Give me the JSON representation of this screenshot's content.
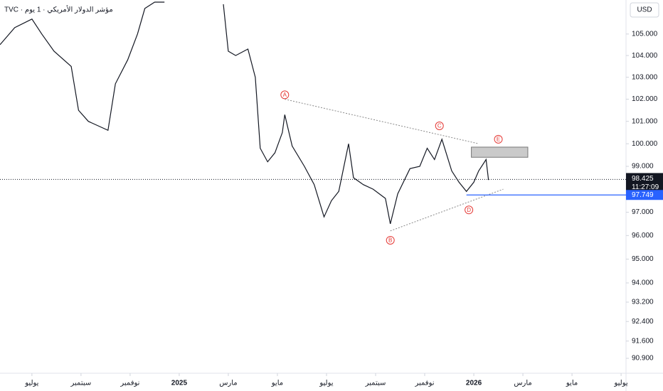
{
  "chart_data": {
    "type": "line",
    "title": "TVC · مؤشر الدولار الأمريكي · 1 يوم",
    "currency": "USD",
    "log_scale": true,
    "color": "#131722",
    "x": [
      -1.3,
      -0.7,
      0,
      0.4,
      0.9,
      1.6,
      1.9,
      2.3,
      2.7,
      3.1,
      3.4,
      3.9,
      4.3,
      4.6,
      5.0,
      5.4,
      5.6,
      7.8,
      8.0,
      8.3,
      8.8,
      9.1,
      9.3,
      9.6,
      9.9,
      10.2,
      10.3,
      10.6,
      11.1,
      11.5,
      11.9,
      12.2,
      12.5,
      12.9,
      13.1,
      13.5,
      13.9,
      14.4,
      14.6,
      14.9,
      15.4,
      15.8,
      16.1,
      16.4,
      16.7,
      17.1,
      17.4,
      17.7,
      18.0,
      18.2,
      18.5,
      18.6
    ],
    "values": [
      104.5,
      105.3,
      105.7,
      105.0,
      104.2,
      103.5,
      101.5,
      101.0,
      100.8,
      100.6,
      102.7,
      103.8,
      105.0,
      106.2,
      106.5,
      106.5,
      null,
      106.4,
      104.2,
      104.0,
      104.3,
      103.0,
      99.8,
      99.2,
      99.6,
      100.5,
      101.3,
      99.9,
      99.0,
      98.2,
      96.8,
      97.5,
      97.9,
      100.0,
      98.5,
      98.2,
      98.0,
      97.6,
      96.5,
      97.8,
      98.9,
      99.0,
      99.8,
      99.3,
      100.2,
      98.8,
      98.3,
      97.9,
      98.3,
      98.8,
      99.3,
      98.4
    ],
    "xlim": [
      -1.3,
      24.2
    ],
    "xticks": [
      {
        "value": 0,
        "label": "يوليو"
      },
      {
        "value": 2,
        "label": "سبتمبر"
      },
      {
        "value": 4,
        "label": "نوفمبر"
      },
      {
        "value": 6,
        "label": "2025"
      },
      {
        "value": 8,
        "label": "مارس"
      },
      {
        "value": 10,
        "label": "مايو"
      },
      {
        "value": 12,
        "label": "يوليو"
      },
      {
        "value": 14,
        "label": "سبتمبر"
      },
      {
        "value": 16,
        "label": "نوفمبر"
      },
      {
        "value": 18,
        "label": "2026"
      },
      {
        "value": 20,
        "label": "مارس"
      },
      {
        "value": 22,
        "label": "مايو"
      },
      {
        "value": 24,
        "label": "يوليو"
      }
    ],
    "ylim": [
      90.3,
      106.6
    ],
    "yticks": [
      {
        "value": 105,
        "label": "105.000"
      },
      {
        "value": 104,
        "label": "104.000"
      },
      {
        "value": 103,
        "label": "103.000"
      },
      {
        "value": 102,
        "label": "102.000"
      },
      {
        "value": 101,
        "label": "101.000"
      },
      {
        "value": 100,
        "label": "100.000"
      },
      {
        "value": 99,
        "label": "99.000"
      },
      {
        "value": 97,
        "label": "97.000"
      },
      {
        "value": 96,
        "label": "96.000"
      },
      {
        "value": 95,
        "label": "95.000"
      },
      {
        "value": 94,
        "label": "94.000"
      },
      {
        "value": 93.2,
        "label": "93.200"
      },
      {
        "value": 92.4,
        "label": "92.400"
      },
      {
        "value": 91.6,
        "label": "91.600"
      },
      {
        "value": 90.9,
        "label": "90.900"
      }
    ],
    "last_price": 98.425,
    "countdown": "11:27:09",
    "level": {
      "value": 97.749,
      "color": "#2962ff",
      "x_start": 17.7
    },
    "wave_labels": [
      {
        "label": "A",
        "x": 10.3,
        "y": 102.2
      },
      {
        "label": "B",
        "x": 14.6,
        "y": 95.8
      },
      {
        "label": "C",
        "x": 16.6,
        "y": 100.8
      },
      {
        "label": "D",
        "x": 17.8,
        "y": 97.1
      },
      {
        "label": "E",
        "x": 19.0,
        "y": 100.2
      }
    ],
    "trendlines": [
      {
        "x": [
          10.3,
          18.2
        ],
        "y": [
          102.0,
          100.0
        ]
      },
      {
        "x": [
          14.6,
          19.2
        ],
        "y": [
          96.2,
          98.0
        ]
      }
    ],
    "zone": {
      "x": [
        17.9,
        20.2
      ],
      "y": [
        99.4,
        99.85
      ],
      "color": "#9e9e9e"
    }
  }
}
